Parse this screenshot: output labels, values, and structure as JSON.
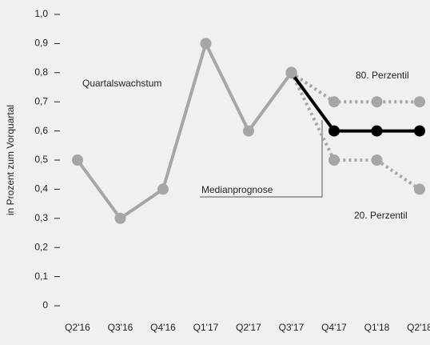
{
  "chart_data": {
    "type": "line",
    "y_label": "in Prozent zum Vorquartal",
    "categories": [
      "Q2'16",
      "Q3'16",
      "Q4'16",
      "Q1'17",
      "Q2'17",
      "Q3'17",
      "Q4'17",
      "Q1'18",
      "Q2'18"
    ],
    "series": [
      {
        "name": "80. Perzentil",
        "color": "#a6a6a6",
        "style": "dotted",
        "values": [
          null,
          null,
          null,
          null,
          null,
          0.8,
          0.7,
          0.7,
          0.7
        ]
      },
      {
        "name": "20. Perzentil",
        "color": "#a6a6a6",
        "style": "dotted",
        "values": [
          null,
          null,
          null,
          null,
          null,
          0.8,
          0.5,
          0.5,
          0.4
        ]
      },
      {
        "name": "Medianprognose",
        "color": "#000000",
        "style": "solid",
        "values": [
          null,
          null,
          null,
          null,
          null,
          0.8,
          0.6,
          0.6,
          0.6
        ]
      },
      {
        "name": "Quartalswachstum",
        "color": "#a6a6a6",
        "style": "solid",
        "values": [
          0.5,
          0.3,
          0.4,
          0.9,
          0.6,
          0.8,
          null,
          null,
          null
        ]
      }
    ],
    "ylim": [
      0,
      1.0
    ],
    "yticks": [
      0,
      {
        "value": 0.1,
        "label": "0,1"
      },
      {
        "value": 0.2,
        "label": "0,2"
      },
      {
        "value": 0.3,
        "label": "0,3"
      },
      {
        "value": 0.4,
        "label": "0,4"
      },
      {
        "value": 0.5,
        "label": "0,5"
      },
      {
        "value": 0.6,
        "label": "0,6"
      },
      {
        "value": 0.7,
        "label": "0,7"
      },
      {
        "value": 0.8,
        "label": "0,8"
      },
      {
        "value": 0.9,
        "label": "0,9"
      },
      {
        "value": 1.0,
        "label": "1,0"
      }
    ]
  }
}
